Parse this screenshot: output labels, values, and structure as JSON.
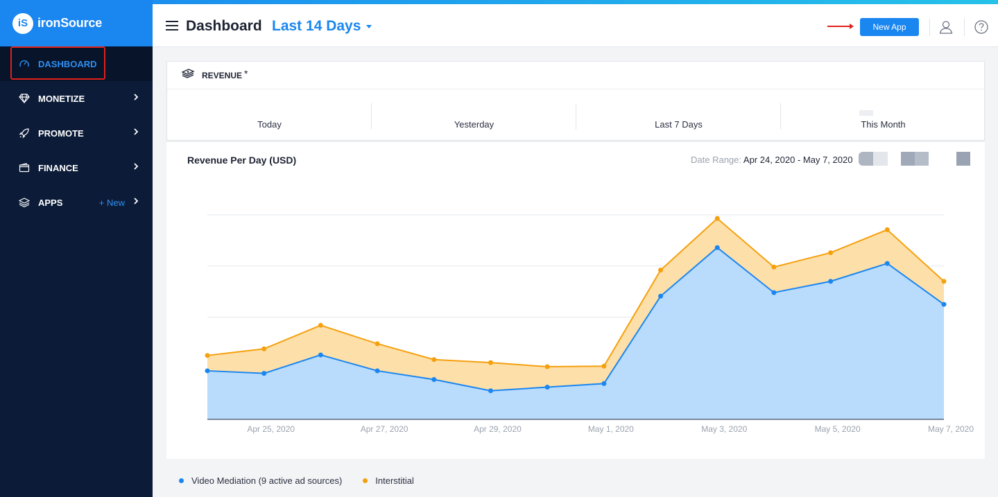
{
  "brand": {
    "name": "ironSource",
    "logo_text": "iS",
    "color": "#1a86f0"
  },
  "sidebar": {
    "items": [
      {
        "label": "DASHBOARD",
        "icon": "speedometer-icon",
        "active": true
      },
      {
        "label": "MONETIZE",
        "icon": "diamond-icon",
        "chevron": true
      },
      {
        "label": "PROMOTE",
        "icon": "rocket-icon",
        "chevron": true
      },
      {
        "label": "FINANCE",
        "icon": "wallet-icon",
        "chevron": true
      },
      {
        "label": "APPS",
        "icon": "layers-icon",
        "chevron": true,
        "extra": "+ New"
      }
    ]
  },
  "header": {
    "title": "Dashboard",
    "range": "Last 14 Days",
    "new_app_label": "New App",
    "icons": [
      "user-icon",
      "help-icon"
    ]
  },
  "revenue": {
    "title": "REVENUE",
    "star": "*",
    "periods": [
      "Today",
      "Yesterday",
      "Last 7 Days",
      "This Month"
    ]
  },
  "chart_card": {
    "title": "Revenue Per Day (USD)",
    "date_range_label": "Date Range:",
    "date_range_value": "Apr 24, 2020 - May 7, 2020"
  },
  "chart_data": {
    "type": "area",
    "stacked": true,
    "x": [
      "Apr 24, 2020",
      "Apr 25, 2020",
      "Apr 26, 2020",
      "Apr 27, 2020",
      "Apr 28, 2020",
      "Apr 29, 2020",
      "Apr 30, 2020",
      "May 1, 2020",
      "May 2, 2020",
      "May 3, 2020",
      "May 4, 2020",
      "May 5, 2020",
      "May 6, 2020",
      "May 7, 2020"
    ],
    "tick_labels": [
      "Apr 25, 2020",
      "Apr 27, 2020",
      "Apr 29, 2020",
      "May 1, 2020",
      "May 3, 2020",
      "May 5, 2020",
      "May 7, 2020"
    ],
    "ylim": [
      0,
      4
    ],
    "grid": true,
    "legend_position": "bottom-left",
    "series": [
      {
        "name": "Video Mediation (9 active ad sources)",
        "color": "#1a86f0",
        "fill": "#b9dbfc",
        "values": [
          0.95,
          0.9,
          1.26,
          0.95,
          0.78,
          0.56,
          0.63,
          0.7,
          2.41,
          3.36,
          2.48,
          2.7,
          3.05,
          2.25
        ]
      },
      {
        "name": "Interstitial",
        "color": "#f5a00e",
        "fill": "#fddfa9",
        "values": [
          0.3,
          0.48,
          0.58,
          0.53,
          0.39,
          0.55,
          0.4,
          0.34,
          0.51,
          0.57,
          0.5,
          0.56,
          0.66,
          0.45
        ]
      }
    ]
  }
}
